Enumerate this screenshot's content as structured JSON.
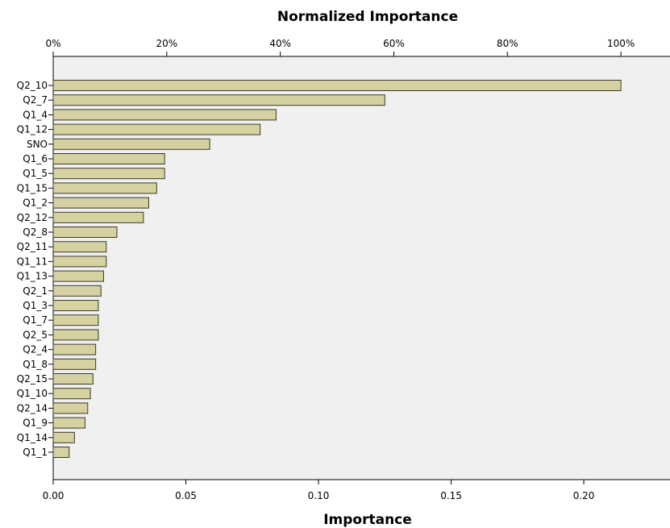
{
  "chart_data": {
    "type": "bar",
    "orientation": "horizontal",
    "title": "Normalized Importance",
    "xlabel": "Importance",
    "top_axis_ticks": [
      "0%",
      "20%",
      "40%",
      "60%",
      "80%",
      "100%"
    ],
    "bottom_axis_ticks": [
      "0.00",
      "0.05",
      "0.10",
      "0.15",
      "0.20"
    ],
    "xlim": [
      0,
      0.2325
    ],
    "categories": [
      "Q2_10",
      "Q2_7",
      "Q1_4",
      "Q1_12",
      "SNO",
      "Q1_6",
      "Q1_5",
      "Q1_15",
      "Q1_2",
      "Q2_12",
      "Q2_8",
      "Q2_11",
      "Q1_11",
      "Q1_13",
      "Q2_1",
      "Q1_3",
      "Q1_7",
      "Q2_5",
      "Q2_4",
      "Q1_8",
      "Q2_15",
      "Q1_10",
      "Q2_14",
      "Q1_9",
      "Q1_14",
      "Q1_1"
    ],
    "values": [
      0.214,
      0.125,
      0.084,
      0.078,
      0.059,
      0.042,
      0.042,
      0.039,
      0.036,
      0.034,
      0.024,
      0.02,
      0.02,
      0.019,
      0.018,
      0.017,
      0.017,
      0.017,
      0.016,
      0.016,
      0.015,
      0.014,
      0.013,
      0.012,
      0.008,
      0.006
    ],
    "grid": false,
    "colors": {
      "bar_fill": "#d6d1a0",
      "bar_stroke": "#3a3a2a",
      "plot_bg": "#f0f0f0"
    }
  }
}
